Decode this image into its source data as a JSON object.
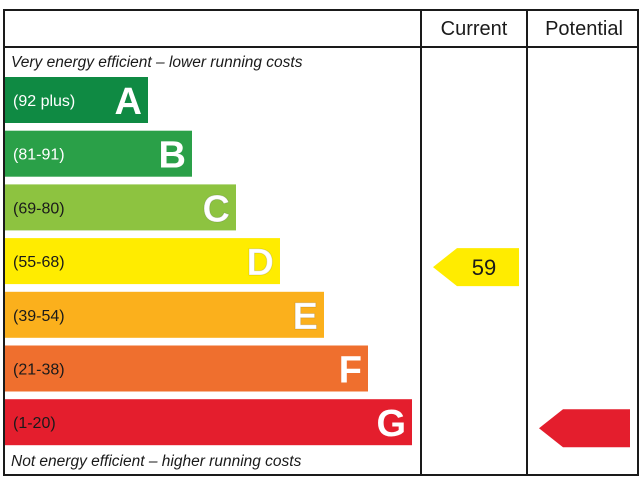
{
  "chart_data": {
    "type": "bar",
    "columns": {
      "current": "Current",
      "potential": "Potential"
    },
    "top_caption": "Very energy efficient – lower running costs",
    "bottom_caption": "Not energy efficient – higher running costs",
    "bands": [
      {
        "range": "(92 plus)",
        "letter": "A",
        "color": "#0f8a43"
      },
      {
        "range": "(81-91)",
        "letter": "B",
        "color": "#2aa048"
      },
      {
        "range": "(69-80)",
        "letter": "C",
        "color": "#8dc340"
      },
      {
        "range": "(55-68)",
        "letter": "D",
        "color": "#ffec00"
      },
      {
        "range": "(39-54)",
        "letter": "E",
        "color": "#fbb01c"
      },
      {
        "range": "(21-38)",
        "letter": "F",
        "color": "#ef6f2e"
      },
      {
        "range": "(1-20)",
        "letter": "G",
        "color": "#e41e2d"
      }
    ],
    "current": {
      "value": "59",
      "band": "D",
      "color": "#ffec00"
    },
    "potential": {
      "value": "",
      "band": "G",
      "color": "#e41e2d"
    }
  }
}
